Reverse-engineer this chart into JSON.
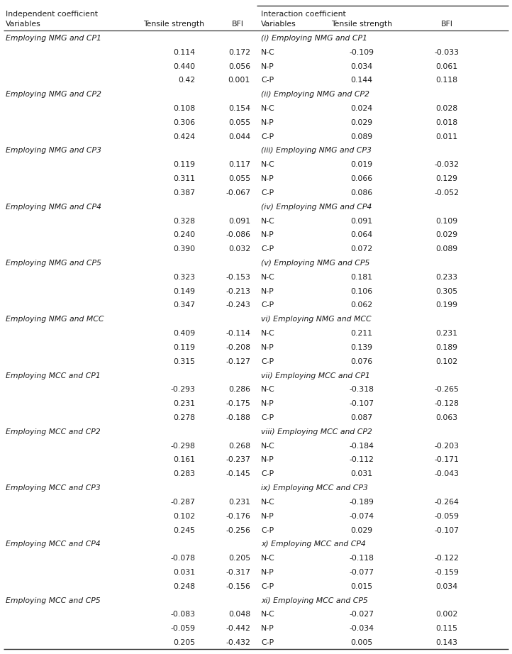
{
  "left_header_main": "Independent coefficient",
  "left_col_headers": [
    "Variables",
    "Tensile strength",
    "BFI"
  ],
  "right_header_main": "Interaction coefficient",
  "right_col_headers": [
    "Variables",
    "Tensile strength",
    "BFI"
  ],
  "left_sections": [
    {
      "title": "Employing NMG and CP1",
      "rows": [
        [
          "",
          "0.114",
          "0.172"
        ],
        [
          "",
          "0.440",
          "0.056"
        ],
        [
          "",
          "0.42",
          "0.001"
        ]
      ]
    },
    {
      "title": "Employing NMG and CP2",
      "rows": [
        [
          "",
          "0.108",
          "0.154"
        ],
        [
          "",
          "0.306",
          "0.055"
        ],
        [
          "",
          "0.424",
          "0.044"
        ]
      ]
    },
    {
      "title": "Employing NMG and CP3",
      "rows": [
        [
          "",
          "0.119",
          "0.117"
        ],
        [
          "",
          "0.311",
          "0.055"
        ],
        [
          "",
          "0.387",
          "-0.067"
        ]
      ]
    },
    {
      "title": "Employing NMG and CP4",
      "rows": [
        [
          "",
          "0.328",
          "0.091"
        ],
        [
          "",
          "0.240",
          "-0.086"
        ],
        [
          "",
          "0.390",
          "0.032"
        ]
      ]
    },
    {
      "title": "Employing NMG and CP5",
      "rows": [
        [
          "",
          "0.323",
          "-0.153"
        ],
        [
          "",
          "0.149",
          "-0.213"
        ],
        [
          "",
          "0.347",
          "-0.243"
        ]
      ]
    },
    {
      "title": "Employing NMG and MCC",
      "rows": [
        [
          "",
          "0.409",
          "-0.114"
        ],
        [
          "",
          "0.119",
          "-0.208"
        ],
        [
          "",
          "0.315",
          "-0.127"
        ]
      ]
    },
    {
      "title": "Employing MCC and CP1",
      "rows": [
        [
          "",
          "-0.293",
          "0.286"
        ],
        [
          "",
          "0.231",
          "-0.175"
        ],
        [
          "",
          "0.278",
          "-0.188"
        ]
      ]
    },
    {
      "title": "Employing MCC and CP2",
      "rows": [
        [
          "",
          "-0.298",
          "0.268"
        ],
        [
          "",
          "0.161",
          "-0.237"
        ],
        [
          "",
          "0.283",
          "-0.145"
        ]
      ]
    },
    {
      "title": "Employing MCC and CP3",
      "rows": [
        [
          "",
          "-0.287",
          "0.231"
        ],
        [
          "",
          "0.102",
          "-0.176"
        ],
        [
          "",
          "0.245",
          "-0.256"
        ]
      ]
    },
    {
      "title": "Employing MCC and CP4",
      "rows": [
        [
          "",
          "-0.078",
          "0.205"
        ],
        [
          "",
          "0.031",
          "-0.317"
        ],
        [
          "",
          "0.248",
          "-0.156"
        ]
      ]
    },
    {
      "title": "Employing MCC and CP5",
      "rows": [
        [
          "",
          "-0.083",
          "0.048"
        ],
        [
          "",
          "-0.059",
          "-0.442"
        ],
        [
          "",
          "0.205",
          "-0.432"
        ]
      ]
    }
  ],
  "right_sections": [
    {
      "title": "(i) Employing NMG and CP1",
      "rows": [
        [
          "N-C",
          "-0.109",
          "-0.033"
        ],
        [
          "N-P",
          "0.034",
          "0.061"
        ],
        [
          "C-P",
          "0.144",
          "0.118"
        ]
      ]
    },
    {
      "title": "(ii) Employing NMG and CP2",
      "rows": [
        [
          "N-C",
          "0.024",
          "0.028"
        ],
        [
          "N-P",
          "0.029",
          "0.018"
        ],
        [
          "C-P",
          "0.089",
          "0.011"
        ]
      ]
    },
    {
      "title": "(iii) Employing NMG and CP3",
      "rows": [
        [
          "N-C",
          "0.019",
          "-0.032"
        ],
        [
          "N-P",
          "0.066",
          "0.129"
        ],
        [
          "C-P",
          "0.086",
          "-0.052"
        ]
      ]
    },
    {
      "title": "(iv) Employing NMG and CP4",
      "rows": [
        [
          "N-C",
          "0.091",
          "0.109"
        ],
        [
          "N-P",
          "0.064",
          "0.029"
        ],
        [
          "C-P",
          "0.072",
          "0.089"
        ]
      ]
    },
    {
      "title": "(v) Employing NMG and CP5",
      "rows": [
        [
          "N-C",
          "0.181",
          "0.233"
        ],
        [
          "N-P",
          "0.106",
          "0.305"
        ],
        [
          "C-P",
          "0.062",
          "0.199"
        ]
      ]
    },
    {
      "title": "vi) Employing NMG and MCC",
      "rows": [
        [
          "N-C",
          "0.211",
          "0.231"
        ],
        [
          "N-P",
          "0.139",
          "0.189"
        ],
        [
          "C-P",
          "0.076",
          "0.102"
        ]
      ]
    },
    {
      "title": "vii) Employing MCC and CP1",
      "rows": [
        [
          "N-C",
          "-0.318",
          "-0.265"
        ],
        [
          "N-P",
          "-0.107",
          "-0.128"
        ],
        [
          "C-P",
          "0.087",
          "0.063"
        ]
      ]
    },
    {
      "title": "viii) Employing MCC and CP2",
      "rows": [
        [
          "N-C",
          "-0.184",
          "-0.203"
        ],
        [
          "N-P",
          "-0.112",
          "-0.171"
        ],
        [
          "C-P",
          "0.031",
          "-0.043"
        ]
      ]
    },
    {
      "title": "ix) Employing MCC and CP3",
      "rows": [
        [
          "N-C",
          "-0.189",
          "-0.264"
        ],
        [
          "N-P",
          "-0.074",
          "-0.059"
        ],
        [
          "C-P",
          "0.029",
          "-0.107"
        ]
      ]
    },
    {
      "title": "x) Employing MCC and CP4",
      "rows": [
        [
          "N-C",
          "-0.118",
          "-0.122"
        ],
        [
          "N-P",
          "-0.077",
          "-0.159"
        ],
        [
          "C-P",
          "0.015",
          "0.034"
        ]
      ]
    },
    {
      "title": "xi) Employing MCC and CP5",
      "rows": [
        [
          "N-C",
          "-0.027",
          "0.002"
        ],
        [
          "N-P",
          "-0.034",
          "0.115"
        ],
        [
          "C-P",
          "0.005",
          "0.143"
        ]
      ]
    }
  ],
  "bg_color": "#ffffff",
  "text_color": "#1a1a1a",
  "font_size": 7.8,
  "section_font_size": 7.8
}
